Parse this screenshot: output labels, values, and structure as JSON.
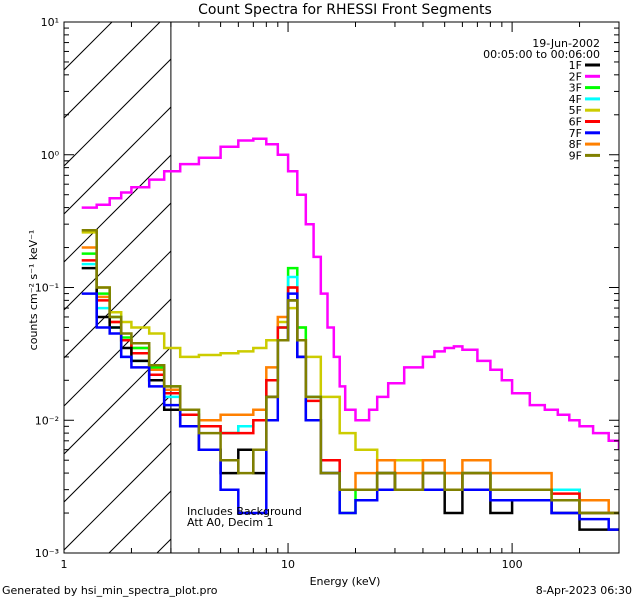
{
  "chart_data": {
    "type": "line",
    "title": "Count Spectra for RHESSI Front Segments",
    "xlabel": "Energy (keV)",
    "ylabel": "counts cm⁻² s⁻¹ keV⁻¹",
    "x_scale": "log",
    "y_scale": "log",
    "xlim": [
      1,
      300
    ],
    "ylim": [
      0.001,
      10
    ],
    "x_ticks": [
      {
        "value": 1,
        "label": "1"
      },
      {
        "value": 10,
        "label": "10"
      },
      {
        "value": 100,
        "label": "100"
      }
    ],
    "y_ticks": [
      {
        "value": 0.001,
        "label": "10⁻³"
      },
      {
        "value": 0.01,
        "label": "10⁻²"
      },
      {
        "value": 0.1,
        "label": "10⁻¹"
      },
      {
        "value": 1,
        "label": "10⁰"
      },
      {
        "value": 10,
        "label": "10¹"
      }
    ],
    "shaded_region": {
      "from": 1,
      "to": 3,
      "pattern": "diagonal-hatch"
    },
    "date_label": "19-Jun-2002",
    "time_label": "00:05:00 to 00:06:00",
    "annotations": [
      "Includes Background",
      "Att A0, Decim 1"
    ],
    "series": [
      {
        "name": "1F",
        "color": "#000000",
        "points": [
          [
            1.2,
            0.14
          ],
          [
            1.4,
            0.06
          ],
          [
            1.6,
            0.05
          ],
          [
            1.8,
            0.035
          ],
          [
            2,
            0.028
          ],
          [
            2.4,
            0.02
          ],
          [
            2.8,
            0.012
          ],
          [
            3.3,
            0.009
          ],
          [
            4,
            0.006
          ],
          [
            5,
            0.004
          ],
          [
            6,
            0.006
          ],
          [
            7,
            0.004
          ],
          [
            8,
            0.015
          ],
          [
            9,
            0.04
          ],
          [
            10,
            0.08
          ],
          [
            11,
            0.03
          ],
          [
            12,
            0.01
          ],
          [
            14,
            0.004
          ],
          [
            17,
            0.003
          ],
          [
            20,
            0.003
          ],
          [
            25,
            0.004
          ],
          [
            30,
            0.003
          ],
          [
            40,
            0.003
          ],
          [
            50,
            0.002
          ],
          [
            60,
            0.003
          ],
          [
            80,
            0.002
          ],
          [
            100,
            0.0025
          ],
          [
            150,
            0.002
          ],
          [
            200,
            0.0015
          ],
          [
            270,
            0.0015
          ]
        ]
      },
      {
        "name": "2F",
        "color": "#ff00ff",
        "points": [
          [
            1.2,
            0.4
          ],
          [
            1.4,
            0.42
          ],
          [
            1.6,
            0.47
          ],
          [
            1.8,
            0.52
          ],
          [
            2,
            0.57
          ],
          [
            2.4,
            0.65
          ],
          [
            2.8,
            0.75
          ],
          [
            3.3,
            0.85
          ],
          [
            4,
            0.95
          ],
          [
            5,
            1.15
          ],
          [
            6,
            1.28
          ],
          [
            7,
            1.32
          ],
          [
            8,
            1.2
          ],
          [
            9,
            1.0
          ],
          [
            10,
            0.75
          ],
          [
            11,
            0.5
          ],
          [
            12,
            0.3
          ],
          [
            13,
            0.17
          ],
          [
            14,
            0.09
          ],
          [
            15,
            0.05
          ],
          [
            16,
            0.03
          ],
          [
            17,
            0.018
          ],
          [
            18,
            0.012
          ],
          [
            20,
            0.01
          ],
          [
            23,
            0.012
          ],
          [
            25,
            0.015
          ],
          [
            28,
            0.019
          ],
          [
            33,
            0.025
          ],
          [
            40,
            0.03
          ],
          [
            45,
            0.033
          ],
          [
            50,
            0.035
          ],
          [
            55,
            0.036
          ],
          [
            60,
            0.034
          ],
          [
            70,
            0.028
          ],
          [
            80,
            0.024
          ],
          [
            90,
            0.02
          ],
          [
            100,
            0.016
          ],
          [
            120,
            0.013
          ],
          [
            140,
            0.012
          ],
          [
            160,
            0.011
          ],
          [
            180,
            0.01
          ],
          [
            200,
            0.009
          ],
          [
            230,
            0.008
          ],
          [
            270,
            0.007
          ],
          [
            300,
            0.006
          ]
        ]
      },
      {
        "name": "3F",
        "color": "#00ff00",
        "points": [
          [
            1.2,
            0.18
          ],
          [
            1.4,
            0.09
          ],
          [
            1.6,
            0.06
          ],
          [
            1.8,
            0.042
          ],
          [
            2,
            0.035
          ],
          [
            2.4,
            0.025
          ],
          [
            2.8,
            0.018
          ],
          [
            3.3,
            0.012
          ],
          [
            4,
            0.009
          ],
          [
            5,
            0.008
          ],
          [
            6,
            0.009
          ],
          [
            7,
            0.01
          ],
          [
            8,
            0.02
          ],
          [
            9,
            0.05
          ],
          [
            10,
            0.14
          ],
          [
            11,
            0.05
          ],
          [
            12,
            0.015
          ],
          [
            14,
            0.004
          ],
          [
            17,
            0.002
          ],
          [
            20,
            0.003
          ],
          [
            25,
            0.004
          ],
          [
            30,
            0.003
          ],
          [
            40,
            0.004
          ],
          [
            50,
            0.003
          ],
          [
            60,
            0.004
          ],
          [
            80,
            0.003
          ],
          [
            100,
            0.003
          ],
          [
            150,
            0.003
          ],
          [
            200,
            0.002
          ],
          [
            270,
            0.002
          ]
        ]
      },
      {
        "name": "4F",
        "color": "#00ffff",
        "points": [
          [
            1.2,
            0.15
          ],
          [
            1.4,
            0.07
          ],
          [
            1.6,
            0.05
          ],
          [
            1.8,
            0.03
          ],
          [
            2,
            0.028
          ],
          [
            2.4,
            0.02
          ],
          [
            2.8,
            0.015
          ],
          [
            3.3,
            0.011
          ],
          [
            4,
            0.009
          ],
          [
            5,
            0.008
          ],
          [
            6,
            0.009
          ],
          [
            7,
            0.01
          ],
          [
            8,
            0.02
          ],
          [
            9,
            0.05
          ],
          [
            10,
            0.12
          ],
          [
            11,
            0.04
          ],
          [
            12,
            0.015
          ],
          [
            14,
            0.005
          ],
          [
            17,
            0.003
          ],
          [
            20,
            0.003
          ],
          [
            25,
            0.004
          ],
          [
            30,
            0.003
          ],
          [
            40,
            0.004
          ],
          [
            50,
            0.003
          ],
          [
            60,
            0.004
          ],
          [
            80,
            0.003
          ],
          [
            100,
            0.003
          ],
          [
            150,
            0.003
          ],
          [
            200,
            0.002
          ],
          [
            270,
            0.002
          ]
        ]
      },
      {
        "name": "5F",
        "color": "#cccc00",
        "points": [
          [
            1.2,
            0.26
          ],
          [
            1.4,
            0.1
          ],
          [
            1.6,
            0.065
          ],
          [
            1.8,
            0.055
          ],
          [
            2,
            0.05
          ],
          [
            2.4,
            0.045
          ],
          [
            2.8,
            0.035
          ],
          [
            3.3,
            0.03
          ],
          [
            4,
            0.031
          ],
          [
            5,
            0.032
          ],
          [
            6,
            0.033
          ],
          [
            7,
            0.035
          ],
          [
            8,
            0.04
          ],
          [
            9,
            0.055
          ],
          [
            10,
            0.07
          ],
          [
            11,
            0.05
          ],
          [
            12,
            0.03
          ],
          [
            14,
            0.015
          ],
          [
            17,
            0.008
          ],
          [
            20,
            0.006
          ],
          [
            25,
            0.005
          ],
          [
            30,
            0.005
          ],
          [
            40,
            0.004
          ],
          [
            50,
            0.004
          ],
          [
            60,
            0.004
          ],
          [
            80,
            0.003
          ],
          [
            100,
            0.003
          ],
          [
            150,
            0.0025
          ],
          [
            200,
            0.002
          ],
          [
            270,
            0.002
          ]
        ]
      },
      {
        "name": "6F",
        "color": "#ff0000",
        "points": [
          [
            1.2,
            0.16
          ],
          [
            1.4,
            0.08
          ],
          [
            1.6,
            0.055
          ],
          [
            1.8,
            0.04
          ],
          [
            2,
            0.032
          ],
          [
            2.4,
            0.022
          ],
          [
            2.8,
            0.016
          ],
          [
            3.3,
            0.011
          ],
          [
            4,
            0.009
          ],
          [
            5,
            0.008
          ],
          [
            6,
            0.008
          ],
          [
            7,
            0.01
          ],
          [
            8,
            0.02
          ],
          [
            9,
            0.05
          ],
          [
            10,
            0.1
          ],
          [
            11,
            0.04
          ],
          [
            12,
            0.014
          ],
          [
            14,
            0.005
          ],
          [
            17,
            0.003
          ],
          [
            20,
            0.003
          ],
          [
            25,
            0.004
          ],
          [
            30,
            0.003
          ],
          [
            40,
            0.004
          ],
          [
            50,
            0.003
          ],
          [
            60,
            0.004
          ],
          [
            80,
            0.003
          ],
          [
            100,
            0.003
          ],
          [
            150,
            0.0028
          ],
          [
            200,
            0.002
          ],
          [
            270,
            0.002
          ]
        ]
      },
      {
        "name": "7F",
        "color": "#0000ff",
        "points": [
          [
            1.2,
            0.09
          ],
          [
            1.4,
            0.05
          ],
          [
            1.6,
            0.045
          ],
          [
            1.8,
            0.03
          ],
          [
            2,
            0.025
          ],
          [
            2.4,
            0.018
          ],
          [
            2.8,
            0.013
          ],
          [
            3.3,
            0.009
          ],
          [
            4,
            0.006
          ],
          [
            5,
            0.003
          ],
          [
            6,
            0.002
          ],
          [
            7,
            0.002
          ],
          [
            8,
            0.01
          ],
          [
            9,
            0.04
          ],
          [
            10,
            0.09
          ],
          [
            11,
            0.03
          ],
          [
            12,
            0.01
          ],
          [
            14,
            0.004
          ],
          [
            17,
            0.002
          ],
          [
            20,
            0.0025
          ],
          [
            25,
            0.003
          ],
          [
            30,
            0.003
          ],
          [
            40,
            0.003
          ],
          [
            50,
            0.003
          ],
          [
            60,
            0.003
          ],
          [
            80,
            0.0025
          ],
          [
            100,
            0.0025
          ],
          [
            150,
            0.002
          ],
          [
            200,
            0.0018
          ],
          [
            270,
            0.0015
          ]
        ]
      },
      {
        "name": "8F",
        "color": "#ff8000",
        "points": [
          [
            1.2,
            0.2
          ],
          [
            1.4,
            0.085
          ],
          [
            1.6,
            0.055
          ],
          [
            1.8,
            0.04
          ],
          [
            2,
            0.035
          ],
          [
            2.4,
            0.024
          ],
          [
            2.8,
            0.017
          ],
          [
            3.3,
            0.012
          ],
          [
            4,
            0.01
          ],
          [
            5,
            0.011
          ],
          [
            6,
            0.011
          ],
          [
            7,
            0.012
          ],
          [
            8,
            0.025
          ],
          [
            9,
            0.06
          ],
          [
            10,
            0.1
          ],
          [
            11,
            0.04
          ],
          [
            12,
            0.015
          ],
          [
            14,
            0.005
          ],
          [
            17,
            0.003
          ],
          [
            20,
            0.004
          ],
          [
            25,
            0.005
          ],
          [
            30,
            0.004
          ],
          [
            40,
            0.005
          ],
          [
            50,
            0.004
          ],
          [
            60,
            0.005
          ],
          [
            80,
            0.004
          ],
          [
            100,
            0.004
          ],
          [
            150,
            0.003
          ],
          [
            200,
            0.0025
          ],
          [
            270,
            0.002
          ]
        ]
      },
      {
        "name": "9F",
        "color": "#808000",
        "points": [
          [
            1.2,
            0.27
          ],
          [
            1.4,
            0.1
          ],
          [
            1.6,
            0.06
          ],
          [
            1.8,
            0.045
          ],
          [
            2,
            0.038
          ],
          [
            2.4,
            0.026
          ],
          [
            2.8,
            0.018
          ],
          [
            3.3,
            0.012
          ],
          [
            4,
            0.008
          ],
          [
            5,
            0.005
          ],
          [
            6,
            0.004
          ],
          [
            7,
            0.006
          ],
          [
            8,
            0.015
          ],
          [
            9,
            0.04
          ],
          [
            10,
            0.08
          ],
          [
            11,
            0.04
          ],
          [
            12,
            0.015
          ],
          [
            14,
            0.004
          ],
          [
            17,
            0.003
          ],
          [
            20,
            0.003
          ],
          [
            25,
            0.004
          ],
          [
            30,
            0.003
          ],
          [
            40,
            0.004
          ],
          [
            50,
            0.003
          ],
          [
            60,
            0.004
          ],
          [
            80,
            0.003
          ],
          [
            100,
            0.003
          ],
          [
            150,
            0.0025
          ],
          [
            200,
            0.002
          ],
          [
            270,
            0.002
          ]
        ]
      }
    ]
  },
  "footer": {
    "left": "Generated by hsi_min_spectra_plot.pro",
    "right": "8-Apr-2023 06:30"
  }
}
